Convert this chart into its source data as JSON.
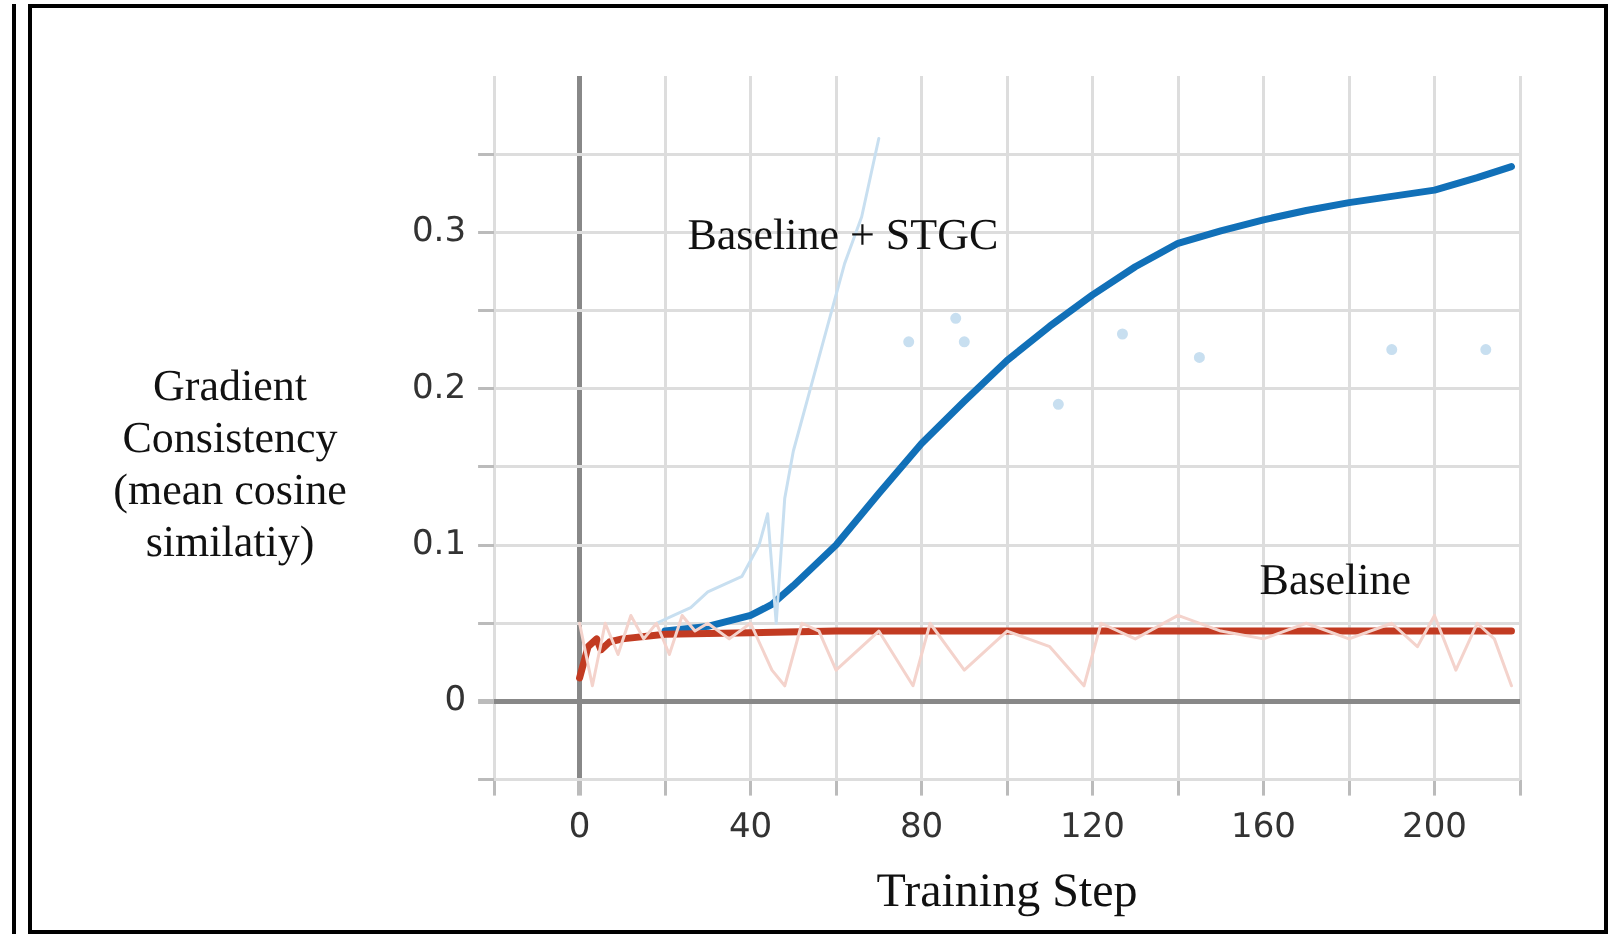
{
  "chart_data": {
    "type": "line",
    "xlabel": "Training Step",
    "ylabel": "Gradient Consistency (mean cosine similatiy)",
    "xlim": [
      -20,
      220
    ],
    "xticks": [
      {
        "value": -20,
        "label": null
      },
      0,
      {
        "value": 20,
        "label": null
      },
      40,
      {
        "value": 60,
        "label": null
      },
      80,
      {
        "value": 100,
        "label": null
      },
      120,
      {
        "value": 140,
        "label": null
      },
      160,
      {
        "value": 180,
        "label": null
      },
      200,
      {
        "value": 220,
        "label": null
      }
    ],
    "ylim": [
      -0.05,
      0.4
    ],
    "yticks": [
      {
        "value": -0.05,
        "label": null
      },
      0,
      {
        "value": 0.05,
        "label": null
      },
      0.1,
      {
        "value": 0.15,
        "label": null
      },
      0.2,
      {
        "value": 0.25,
        "label": null
      },
      0.3,
      {
        "value": 0.35,
        "label": null
      }
    ],
    "grid": true,
    "legend": false,
    "marker": "none",
    "series": [
      {
        "color": "#f4d3cc",
        "x": [
          0,
          3,
          6,
          9,
          12,
          15,
          18,
          21,
          24,
          27,
          30,
          35,
          40,
          45,
          48,
          52,
          56,
          60,
          70,
          78,
          82,
          90,
          100,
          110,
          118,
          122,
          130,
          140,
          150,
          160,
          170,
          180,
          190,
          196,
          200,
          205,
          210,
          214,
          218
        ],
        "values": [
          0.05,
          0.01,
          0.05,
          0.03,
          0.055,
          0.04,
          0.05,
          0.03,
          0.055,
          0.045,
          0.05,
          0.04,
          0.05,
          0.02,
          0.01,
          0.05,
          0.045,
          0.02,
          0.045,
          0.01,
          0.05,
          0.02,
          0.045,
          0.035,
          0.01,
          0.05,
          0.04,
          0.055,
          0.045,
          0.04,
          0.05,
          0.04,
          0.05,
          0.035,
          0.055,
          0.02,
          0.05,
          0.04,
          0.01
        ]
      },
      {
        "color": "#c8dff0",
        "x": [
          18,
          22,
          26,
          30,
          34,
          38,
          42,
          44,
          46,
          48,
          50,
          54,
          58,
          62,
          66,
          70,
          74,
          77,
          80,
          88,
          89,
          90,
          100,
          112,
          120,
          127,
          135,
          145,
          160,
          190,
          200,
          212
        ],
        "values": [
          0.05,
          0.055,
          0.06,
          0.07,
          0.075,
          0.08,
          0.1,
          0.12,
          0.05,
          0.13,
          0.16,
          0.2,
          0.24,
          0.28,
          0.31,
          0.36,
          null,
          0.23,
          null,
          0.245,
          null,
          0.23,
          null,
          0.19,
          null,
          0.235,
          null,
          0.22,
          null,
          0.225,
          null,
          0.225
        ]
      },
      {
        "name": "Baseline",
        "color": "#c23b22",
        "x": [
          0,
          2,
          4,
          5,
          7,
          10,
          20,
          40,
          60,
          100,
          140,
          180,
          218
        ],
        "values": [
          0.015,
          0.035,
          0.04,
          0.033,
          0.038,
          0.04,
          0.043,
          0.044,
          0.045,
          0.045,
          0.045,
          0.045,
          0.045
        ]
      },
      {
        "name": "Baseline + STGC",
        "color": "#1170b8",
        "x": [
          20,
          30,
          40,
          45,
          50,
          60,
          70,
          80,
          90,
          100,
          110,
          120,
          130,
          140,
          150,
          160,
          170,
          180,
          190,
          200,
          210,
          218
        ],
        "values": [
          0.045,
          0.048,
          0.055,
          0.062,
          0.074,
          0.1,
          0.133,
          0.165,
          0.192,
          0.218,
          0.24,
          0.26,
          0.278,
          0.293,
          0.301,
          0.308,
          0.314,
          0.319,
          0.323,
          0.327,
          0.335,
          0.342
        ]
      }
    ]
  }
}
